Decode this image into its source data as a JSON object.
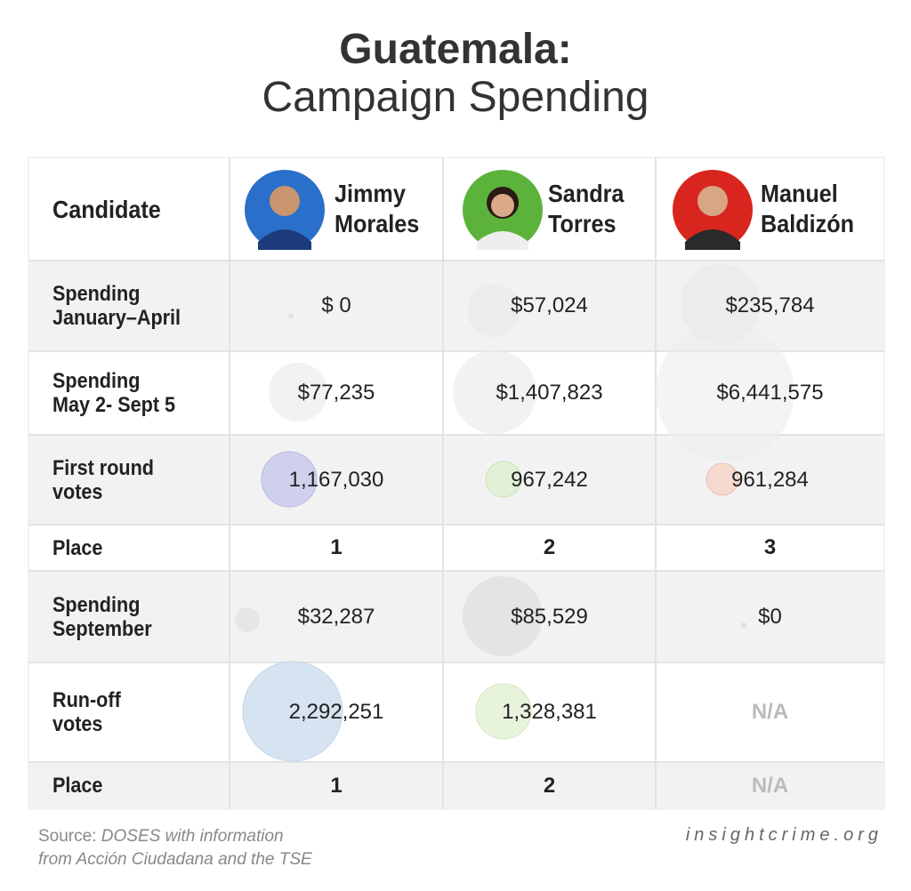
{
  "title": [
    "Guatemala:",
    "Campaign Spending"
  ],
  "table": {
    "header": {
      "label": "Candidate",
      "candidates": [
        [
          "Jimmy",
          "Morales"
        ],
        [
          "Sandra",
          "Torres"
        ],
        [
          "Manuel",
          "Baldizón"
        ]
      ]
    },
    "rows": [
      {
        "label": [
          "Spending",
          "January–April"
        ],
        "cells": [
          "$ 0",
          "$57,024",
          "$235,784"
        ]
      },
      {
        "label": [
          "Spending",
          "May 2- Sept 5"
        ],
        "cells": [
          "$77,235",
          "$1,407,823",
          "$6,441,575"
        ]
      },
      {
        "label": [
          "First round",
          "votes"
        ],
        "cells": [
          "1,167,030",
          "967,242",
          "961,284"
        ]
      },
      {
        "label": [
          "Place"
        ],
        "cells": [
          "1",
          "2",
          "3"
        ]
      },
      {
        "label": [
          "Spending",
          "September"
        ],
        "cells": [
          "$32,287",
          "$85,529",
          "$0"
        ]
      },
      {
        "label": [
          "Run-off",
          "votes"
        ],
        "cells": [
          "2,292,251",
          "1,328,381",
          "N/A"
        ]
      },
      {
        "label": [
          "Place"
        ],
        "cells": [
          "1",
          "2",
          "N/A"
        ]
      }
    ]
  },
  "source": {
    "prefix": "Source:",
    "text": [
      "DOSES with information",
      "from Acción Ciudadana and the TSE"
    ]
  },
  "site": "insightcrime.org"
}
